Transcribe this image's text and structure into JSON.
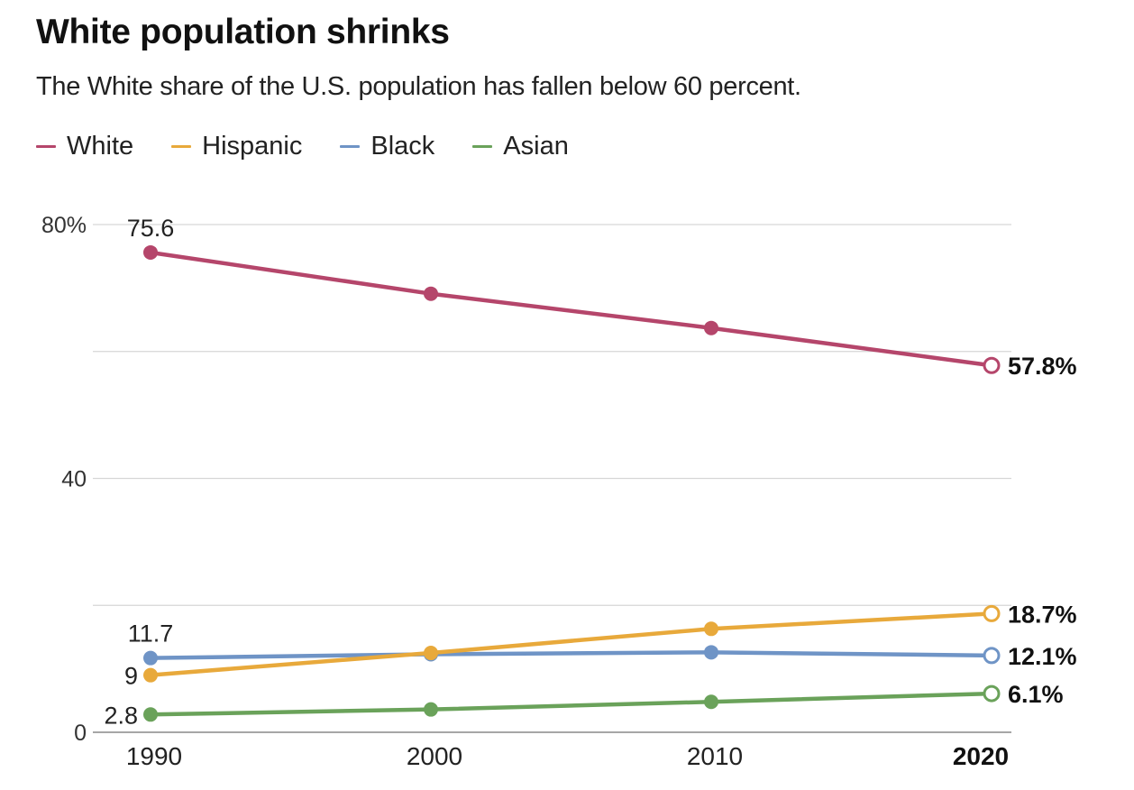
{
  "header": {
    "title": "White population shrinks",
    "subtitle": "The White share of the U.S. population has fallen below 60 percent."
  },
  "legend": [
    {
      "name": "White",
      "color": "#b5466b"
    },
    {
      "name": "Hispanic",
      "color": "#e8a93b"
    },
    {
      "name": "Black",
      "color": "#6f94c6"
    },
    {
      "name": "Asian",
      "color": "#6aa25a"
    }
  ],
  "chart_data": {
    "type": "line",
    "title": "White population shrinks",
    "subtitle": "The White share of the U.S. population has fallen below 60 percent.",
    "xlabel": "",
    "ylabel": "",
    "x": [
      1990,
      2000,
      2010,
      2020
    ],
    "x_tick_labels": [
      "1990",
      "2000",
      "2010",
      "2020"
    ],
    "highlight_x": "2020",
    "ylim": [
      0,
      80
    ],
    "gridlines": [
      0,
      20,
      40,
      60,
      80
    ],
    "y_tick_labels": [
      {
        "value": 80,
        "label": "80%"
      },
      {
        "value": 40,
        "label": "40"
      },
      {
        "value": 0,
        "label": "0"
      }
    ],
    "grid": true,
    "legend_position": "top-left",
    "series": [
      {
        "name": "White",
        "color": "#b5466b",
        "values": [
          75.6,
          69.1,
          63.7,
          57.8
        ],
        "start_label": "75.6",
        "end_label": "57.8%"
      },
      {
        "name": "Hispanic",
        "color": "#e8a93b",
        "values": [
          9.0,
          12.5,
          16.3,
          18.7
        ],
        "start_label": "9",
        "end_label": "18.7%"
      },
      {
        "name": "Black",
        "color": "#6f94c6",
        "values": [
          11.7,
          12.3,
          12.6,
          12.1
        ],
        "start_label": "11.7",
        "end_label": "12.1%"
      },
      {
        "name": "Asian",
        "color": "#6aa25a",
        "values": [
          2.8,
          3.6,
          4.8,
          6.1
        ],
        "start_label": "2.8",
        "end_label": "6.1%"
      }
    ]
  }
}
